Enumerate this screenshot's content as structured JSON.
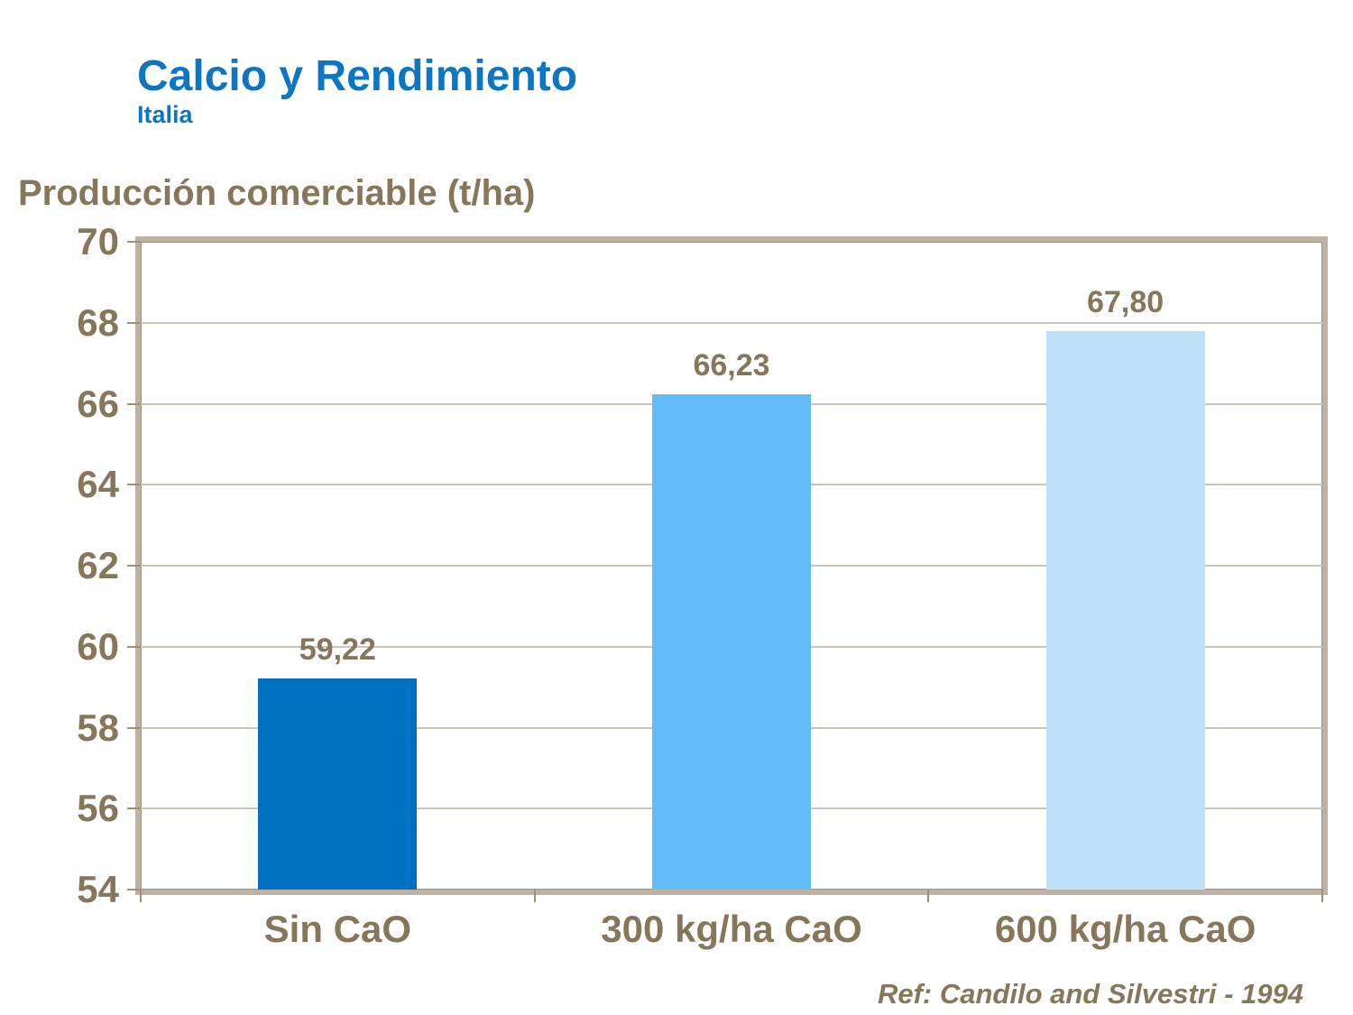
{
  "header": {
    "title": "Calcio y Rendimiento",
    "subtitle": "Italia"
  },
  "axis_title": "Producción comerciable (t/ha)",
  "footer": {
    "ref": "Ref: Candilo and Silvestri - 1994"
  },
  "colors": {
    "title_blue": "#0d76c3",
    "text_brown": "#86765a",
    "frame": "#beb2a4",
    "frame_dark": "#a08f7a",
    "gridline": "#ccc3b6"
  },
  "chart_data": {
    "type": "bar",
    "title": "Calcio y Rendimiento",
    "subtitle": "Italia",
    "ylabel": "Producción comerciable (t/ha)",
    "xlabel": "",
    "categories": [
      "Sin CaO",
      "300 kg/ha CaO",
      "600 kg/ha CaO"
    ],
    "values": [
      59.22,
      66.23,
      67.8
    ],
    "value_labels": [
      "59,22",
      "66,23",
      "67,80"
    ],
    "bar_colors": [
      "#0070C0",
      "#63BBF7",
      "#BEE0F9"
    ],
    "ylim": [
      54,
      70
    ],
    "yticks": [
      54,
      56,
      58,
      60,
      62,
      64,
      66,
      68,
      70
    ],
    "grid": true,
    "legend": false,
    "annotation": "Ref: Candilo and Silvestri - 1994"
  }
}
